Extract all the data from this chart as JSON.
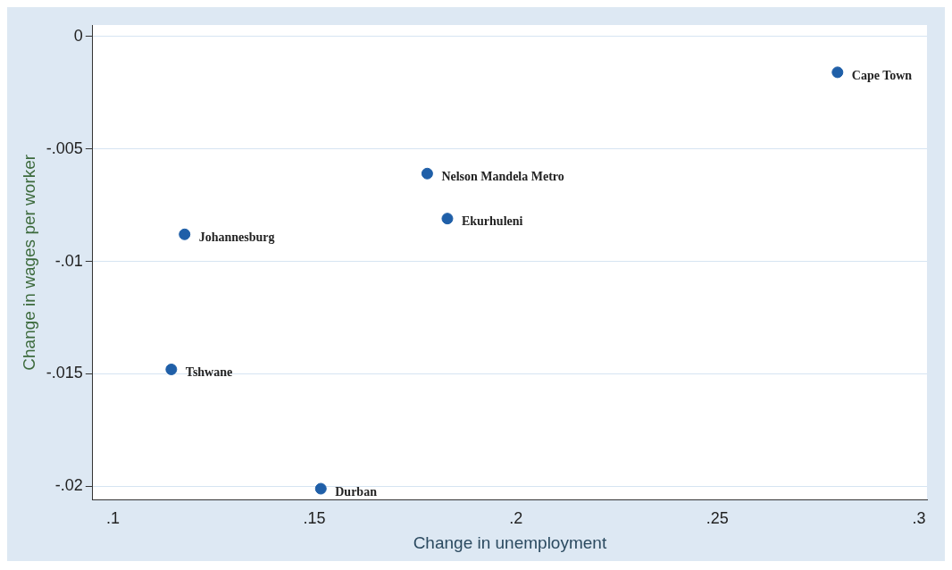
{
  "chart_data": {
    "type": "scatter",
    "xlabel": "Change in unemployment",
    "ylabel": "Change in wages per worker",
    "x": [
      0.1145,
      0.1178,
      0.1516,
      0.178,
      0.183,
      0.2798
    ],
    "series": [
      {
        "color": "#1f5fa8",
        "values": [
          -0.0148,
          -0.0088,
          -0.0201,
          -0.0061,
          -0.0081,
          -0.0016
        ]
      }
    ],
    "marker": "circle",
    "grid": "y",
    "legend": false,
    "xlim": [
      0.095,
      0.302
    ],
    "ylim": [
      -0.0206,
      0.0005
    ],
    "xticks": [
      {
        "value": 0.1,
        "label": ".1"
      },
      {
        "value": 0.15,
        "label": ".15"
      },
      {
        "value": 0.2,
        "label": ".2"
      },
      {
        "value": 0.25,
        "label": ".25"
      },
      {
        "value": 0.3,
        "label": ".3"
      }
    ],
    "yticks": [
      {
        "value": -0.02,
        "label": "-.02"
      },
      {
        "value": -0.015,
        "label": "-.015"
      },
      {
        "value": -0.01,
        "label": "-.01"
      },
      {
        "value": -0.005,
        "label": "-.005"
      },
      0
    ],
    "annotations": [
      {
        "text": "Tshwane",
        "x": 0.1145,
        "y": -0.0148
      },
      {
        "text": "Johannesburg",
        "x": 0.1178,
        "y": -0.0088
      },
      {
        "text": "Durban",
        "x": 0.1516,
        "y": -0.0201
      },
      {
        "text": "Nelson Mandela Metro",
        "x": 0.178,
        "y": -0.0061
      },
      {
        "text": "Ekurhuleni",
        "x": 0.183,
        "y": -0.0081
      },
      {
        "text": "Cape Town",
        "x": 0.2798,
        "y": -0.0016
      }
    ]
  }
}
